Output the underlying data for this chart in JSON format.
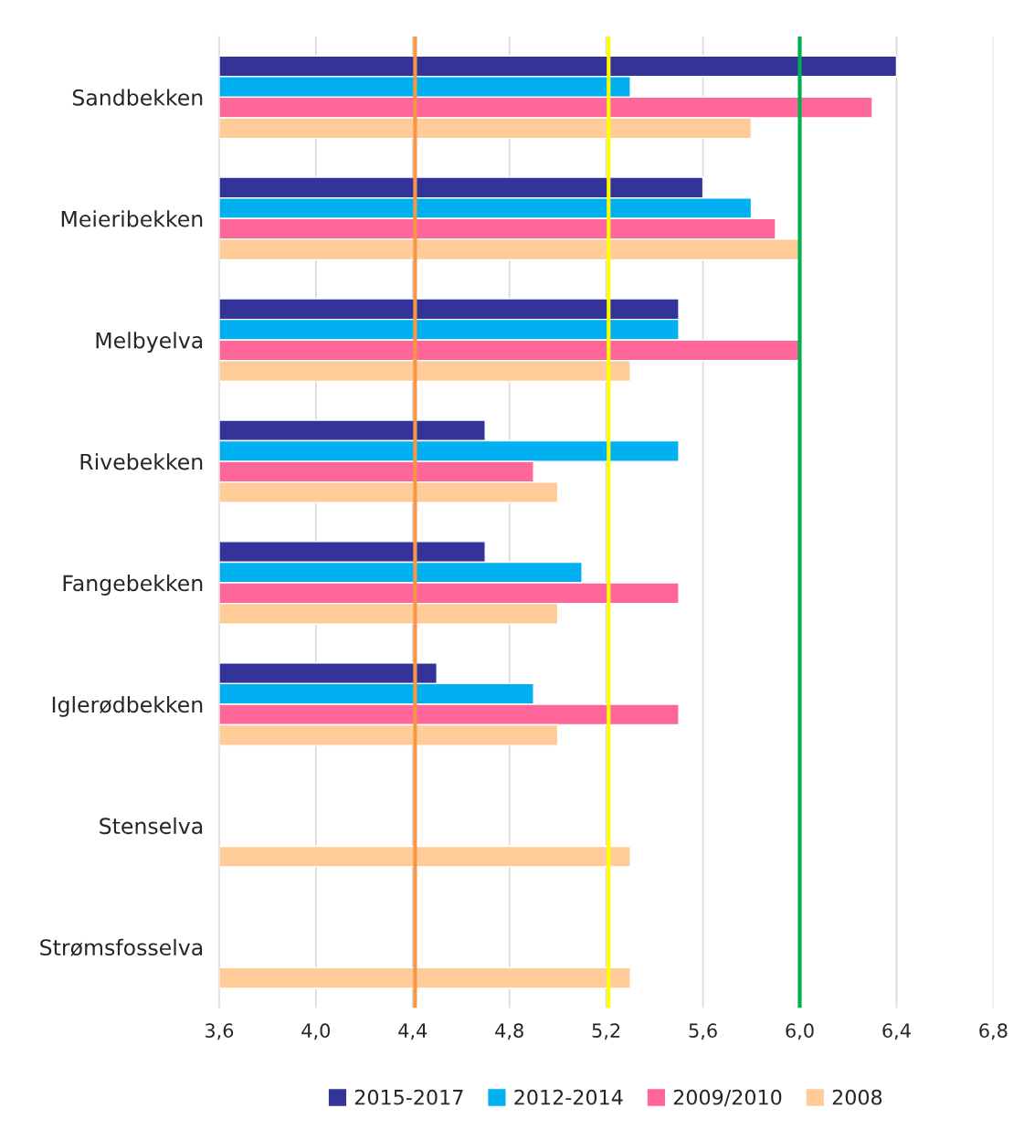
{
  "chart_data": {
    "type": "bar",
    "orientation": "horizontal",
    "categories": [
      "Sandbekken",
      "Meieribekken",
      "Melbyelva",
      "Rivebekken",
      "Fangebekken",
      "Iglerødbekken",
      "Stenselva",
      "Strømsfosselva"
    ],
    "series": [
      {
        "name": "2015-2017",
        "color": "#333399",
        "values": [
          6.4,
          5.6,
          5.5,
          4.7,
          4.7,
          4.5,
          null,
          null
        ]
      },
      {
        "name": "2012-2014",
        "color": "#00b0f0",
        "values": [
          5.3,
          5.8,
          5.5,
          5.5,
          5.1,
          4.9,
          null,
          null
        ]
      },
      {
        "name": "2009/2010",
        "color": "#ff6699",
        "values": [
          6.3,
          5.9,
          6.0,
          4.9,
          5.5,
          5.5,
          null,
          null
        ]
      },
      {
        "name": "2008",
        "color": "#ffcc99",
        "values": [
          5.8,
          6.0,
          5.3,
          5.0,
          5.0,
          5.0,
          5.3,
          5.3
        ]
      }
    ],
    "xlim": [
      3.6,
      6.8
    ],
    "xticks": [
      {
        "value": 3.6,
        "label": "3,6"
      },
      {
        "value": 4.0,
        "label": "4,0"
      },
      {
        "value": 4.4,
        "label": "4,4"
      },
      {
        "value": 4.8,
        "label": "4,8"
      },
      {
        "value": 5.2,
        "label": "5,2"
      },
      {
        "value": 5.6,
        "label": "5,6"
      },
      {
        "value": 6.0,
        "label": "6,0"
      },
      {
        "value": 6.4,
        "label": "6,4"
      },
      {
        "value": 6.8,
        "label": "6,8"
      }
    ],
    "ref_lines": [
      {
        "axis": "x",
        "value": 4.41,
        "color": "#f79646"
      },
      {
        "axis": "x",
        "value": 5.21,
        "color": "#ffff00"
      },
      {
        "axis": "x",
        "value": 6.0,
        "color": "#00b050"
      }
    ],
    "grid": "x",
    "legend": "bottom"
  }
}
